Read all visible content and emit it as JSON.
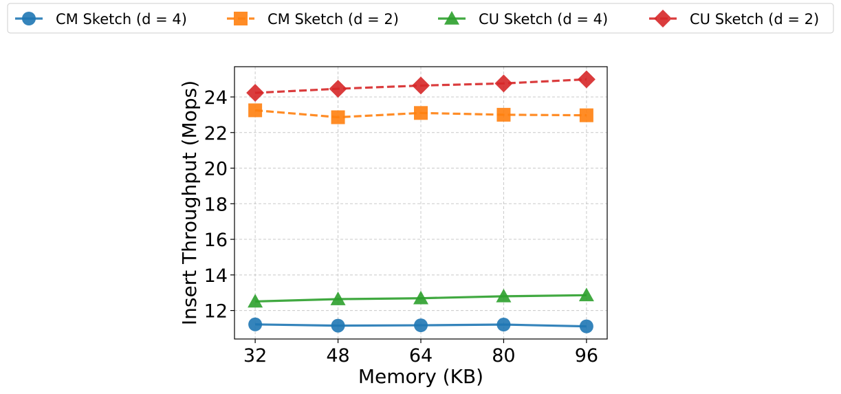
{
  "chart_data": {
    "type": "line",
    "title": "",
    "xlabel": "Memory (KB)",
    "ylabel": "Insert Throughput (Mops)",
    "x": [
      32,
      48,
      64,
      80,
      96
    ],
    "xlim": [
      28,
      100
    ],
    "ylim": [
      10.4,
      25.7
    ],
    "yticks": [
      12,
      14,
      16,
      18,
      20,
      22,
      24
    ],
    "grid": true,
    "legend_position": "top, outside plot, single row",
    "series": [
      {
        "name": "CM Sketch (d = 4)",
        "values": [
          11.22,
          11.15,
          11.17,
          11.21,
          11.11
        ],
        "color": "#1f77b4",
        "marker": "circle",
        "dash": "solid"
      },
      {
        "name": "CM Sketch (d = 2)",
        "values": [
          23.25,
          22.86,
          23.1,
          23.0,
          22.97
        ],
        "color": "#ff7f0e",
        "marker": "square",
        "dash": "dashed"
      },
      {
        "name": "CU Sketch (d = 4)",
        "values": [
          12.51,
          12.64,
          12.69,
          12.8,
          12.86
        ],
        "color": "#2ca02c",
        "marker": "triangle",
        "dash": "solid"
      },
      {
        "name": "CU Sketch (d = 2)",
        "values": [
          24.23,
          24.46,
          24.64,
          24.76,
          24.99
        ],
        "color": "#d62728",
        "marker": "diamond",
        "dash": "dashed"
      }
    ]
  }
}
